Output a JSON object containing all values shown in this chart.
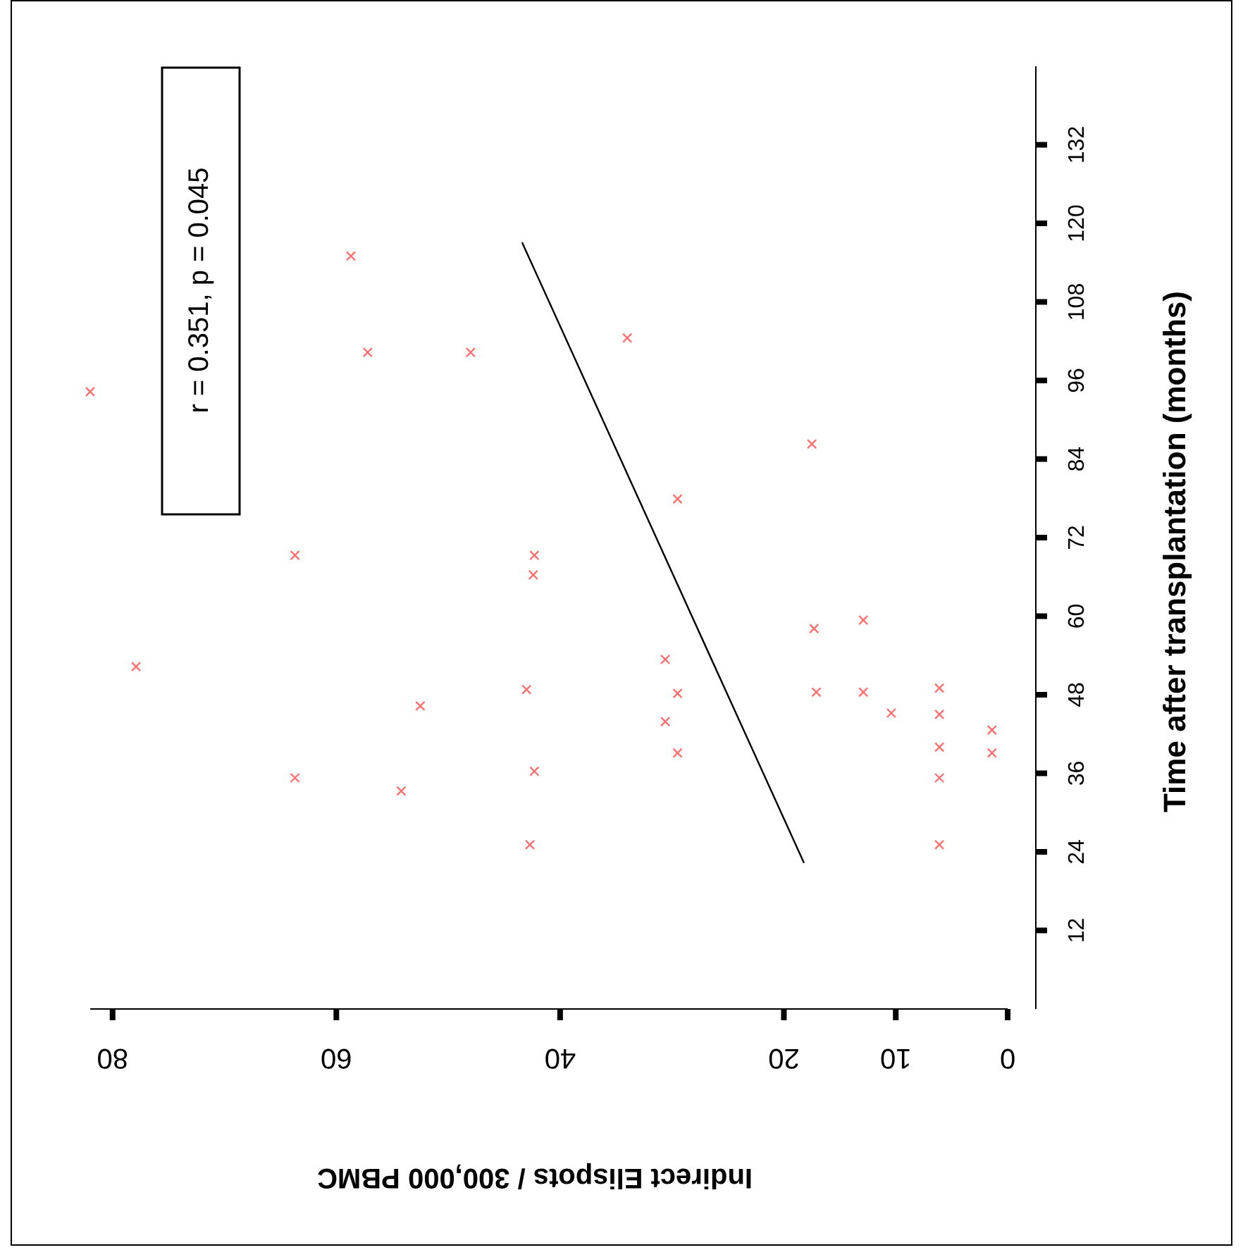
{
  "chart_data": {
    "type": "scatter",
    "xlabel": "Indirect Elispots / 300,000 PBMC",
    "ylabel": "Time after transplantation  (months)",
    "annotations": [
      "r = 0.351, p = 0.045"
    ],
    "xlim": [
      82,
      0
    ],
    "xticks": [
      80,
      60,
      40,
      20,
      10,
      0
    ],
    "ylim": [
      0,
      144
    ],
    "yticks": [
      12,
      24,
      36,
      48,
      60,
      72,
      84,
      96,
      108,
      120,
      132
    ],
    "grid": false,
    "series": [
      {
        "marker": "cross",
        "color": "#ff7070",
        "x": [
          82,
          77.9,
          63.7,
          63.7,
          58.7,
          57.2,
          54.2,
          52.5,
          48,
          43,
          42.7,
          42.4,
          42.3,
          42.3,
          34,
          30.6,
          30.6,
          29.5,
          29.5,
          29.5,
          17.5,
          17.3,
          17.1,
          12.9,
          12.9,
          10.4,
          6.1,
          6.1,
          6.1,
          6.1,
          6.1,
          1.4,
          1.4
        ],
        "values": [
          94.3,
          52.3,
          69.3,
          35.3,
          115,
          100.3,
          33.3,
          46.3,
          100.3,
          48.8,
          25.1,
          66.3,
          69.3,
          36.3,
          102.5,
          53.4,
          43.9,
          77.9,
          48.2,
          39.1,
          86.3,
          58.1,
          48.4,
          59.4,
          48.4,
          45.2,
          49,
          45,
          40,
          35.3,
          25.1,
          42.6,
          39.1
        ]
      },
      {
        "type": "line",
        "color": "#000000",
        "x": [
          18.2,
          43.4
        ],
        "values": [
          22.3,
          117.1
        ]
      }
    ]
  }
}
